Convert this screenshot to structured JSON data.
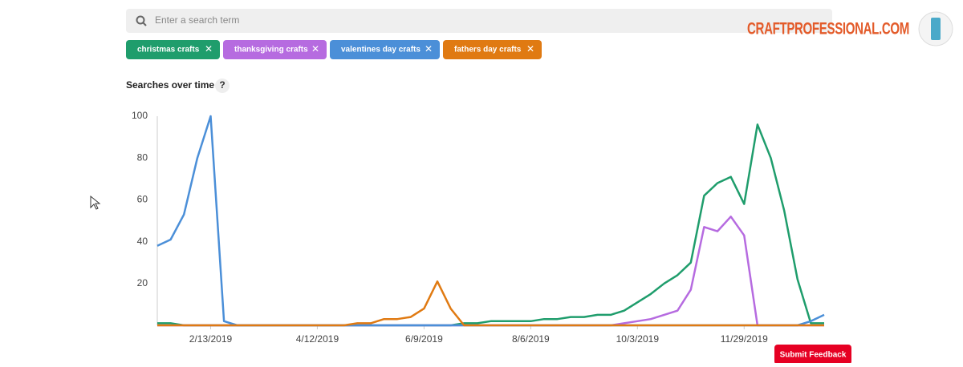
{
  "search": {
    "placeholder": "Enter a search term"
  },
  "tags": [
    "christmas crafts",
    "thanksgiving crafts",
    "valentines day crafts",
    "fathers day crafts"
  ],
  "brand": "CRAFTPROFESSIONAL.COM",
  "help": "?",
  "feedback_button": "Submit Feedback",
  "chart_data": {
    "type": "line",
    "title": "Searches over time",
    "categories": [
      null,
      null,
      null,
      null,
      "2/13/2019",
      null,
      null,
      null,
      null,
      null,
      null,
      null,
      "4/12/2019",
      null,
      null,
      null,
      null,
      null,
      null,
      null,
      "6/9/2019",
      null,
      null,
      null,
      null,
      null,
      null,
      null,
      "8/6/2019",
      null,
      null,
      null,
      null,
      null,
      null,
      null,
      "10/3/2019",
      null,
      null,
      null,
      null,
      null,
      null,
      null,
      "11/29/2019",
      null,
      null,
      null,
      null,
      null,
      null
    ],
    "series": [
      {
        "name": "christmas crafts",
        "color": "#1f9d6c",
        "values": [
          1,
          1,
          0,
          0,
          0,
          0,
          0,
          0,
          0,
          0,
          0,
          0,
          0,
          0,
          0,
          0,
          0,
          0,
          0,
          0,
          0,
          0,
          0,
          1,
          1,
          2,
          2,
          2,
          2,
          3,
          3,
          4,
          4,
          5,
          5,
          7,
          11,
          15,
          20,
          24,
          30,
          62,
          68,
          71,
          58,
          96,
          80,
          55,
          22,
          1,
          1
        ]
      },
      {
        "name": "thanksgiving crafts",
        "color": "#b66be0",
        "values": [
          0,
          0,
          0,
          0,
          0,
          0,
          0,
          0,
          0,
          0,
          0,
          0,
          0,
          0,
          0,
          0,
          0,
          0,
          0,
          0,
          0,
          0,
          0,
          0,
          0,
          0,
          0,
          0,
          0,
          0,
          0,
          0,
          0,
          0,
          0,
          1,
          2,
          3,
          5,
          7,
          17,
          47,
          45,
          52,
          43,
          0,
          0,
          0,
          0,
          0,
          0
        ]
      },
      {
        "name": "valentines day crafts",
        "color": "#4b8fd8",
        "values": [
          38,
          41,
          53,
          80,
          100,
          2,
          0,
          0,
          0,
          0,
          0,
          0,
          0,
          0,
          0,
          0,
          0,
          0,
          0,
          0,
          0,
          0,
          0,
          0,
          0,
          0,
          0,
          0,
          0,
          0,
          0,
          0,
          0,
          0,
          0,
          0,
          0,
          0,
          0,
          0,
          0,
          0,
          0,
          0,
          0,
          0,
          0,
          0,
          0,
          2,
          5
        ]
      },
      {
        "name": "fathers day crafts",
        "color": "#e07a12",
        "values": [
          0,
          0,
          0,
          0,
          0,
          0,
          0,
          0,
          0,
          0,
          0,
          0,
          0,
          0,
          0,
          1,
          1,
          3,
          3,
          4,
          8,
          21,
          8,
          0,
          0,
          0,
          0,
          0,
          0,
          0,
          0,
          0,
          0,
          0,
          0,
          0,
          0,
          0,
          0,
          0,
          0,
          0,
          0,
          0,
          0,
          0,
          0,
          0,
          0,
          0,
          0
        ]
      }
    ],
    "ylim": [
      0,
      100
    ],
    "yticks": [
      20,
      40,
      60,
      80,
      100
    ],
    "grid": false
  }
}
